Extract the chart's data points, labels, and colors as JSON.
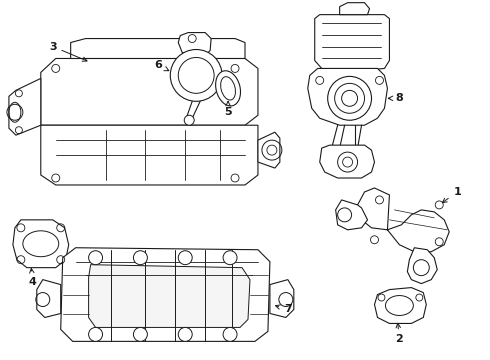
{
  "background_color": "#ffffff",
  "line_color": "#1a1a1a",
  "line_width": 0.8,
  "figsize": [
    4.9,
    3.6
  ],
  "dpi": 100
}
